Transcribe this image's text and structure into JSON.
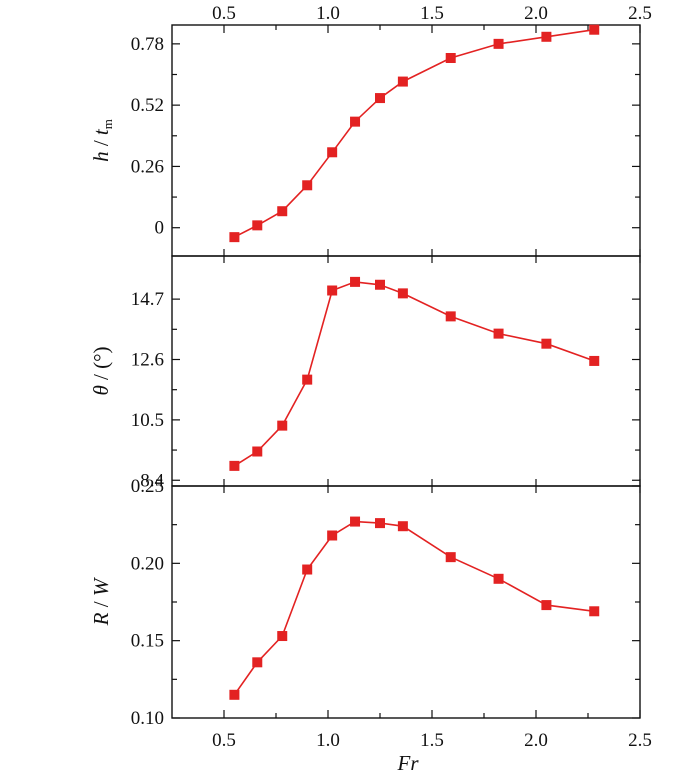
{
  "chart_data": {
    "type": "line",
    "xlabel": "Fr",
    "x_ticks": [
      "0.5",
      "1.0",
      "1.5",
      "2.0",
      "2.5"
    ],
    "xlim": [
      0.25,
      2.5
    ],
    "series_color": "#e32222",
    "x": [
      0.55,
      0.66,
      0.78,
      0.9,
      1.02,
      1.13,
      1.25,
      1.36,
      1.59,
      1.82,
      2.05,
      2.28
    ],
    "panels": [
      {
        "ylabel": {
          "italic": "h",
          "slash": " / ",
          "italic2": "t",
          "sub": "m"
        },
        "ylim": [
          -0.12,
          0.86
        ],
        "y_ticks": [
          "0",
          "0.26",
          "0.52",
          "0.78"
        ],
        "y_tick_values": [
          0,
          0.26,
          0.52,
          0.78
        ],
        "values": [
          -0.04,
          0.01,
          0.07,
          0.18,
          0.32,
          0.45,
          0.55,
          0.62,
          0.72,
          0.78,
          0.81,
          0.84
        ]
      },
      {
        "ylabel": {
          "italic": "θ",
          "slash": " / (°)",
          "italic2": "",
          "sub": ""
        },
        "ylim": [
          8.2,
          16.2
        ],
        "y_ticks": [
          "8.4",
          "10.5",
          "12.6",
          "14.7"
        ],
        "y_tick_values": [
          8.4,
          10.5,
          12.6,
          14.7
        ],
        "values": [
          8.9,
          9.4,
          10.3,
          11.9,
          15.0,
          15.3,
          15.2,
          14.9,
          14.1,
          13.5,
          13.15,
          12.55
        ]
      },
      {
        "ylabel": {
          "italic": "R",
          "slash": " / ",
          "italic2": "W",
          "sub": ""
        },
        "ylim": [
          0.1,
          0.25
        ],
        "y_ticks": [
          "0.10",
          "0.15",
          "0.20",
          "0.25"
        ],
        "y_tick_values": [
          0.1,
          0.15,
          0.2,
          0.25
        ],
        "values": [
          0.115,
          0.136,
          0.153,
          0.196,
          0.218,
          0.227,
          0.226,
          0.224,
          0.204,
          0.19,
          0.173,
          0.169
        ]
      }
    ]
  }
}
